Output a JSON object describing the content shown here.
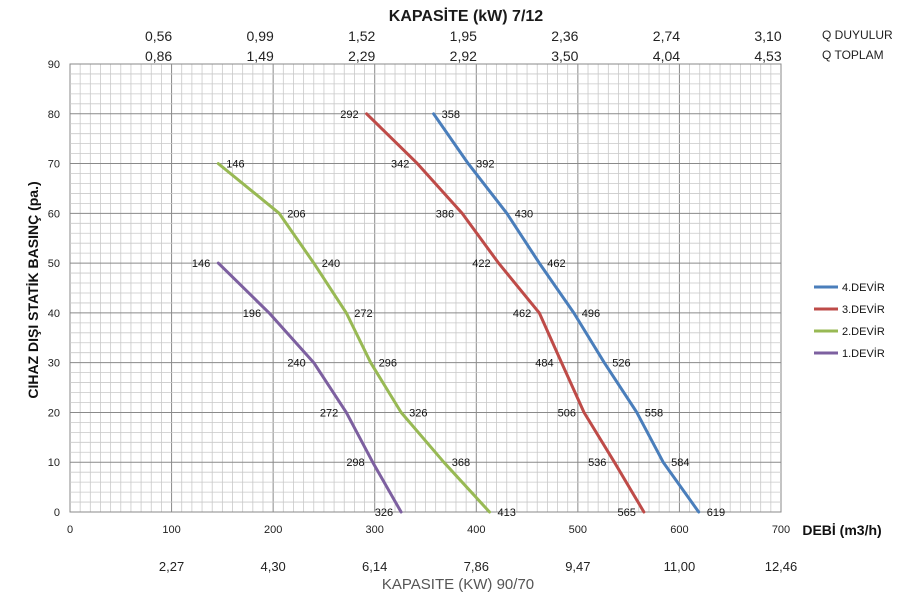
{
  "chart_data": {
    "type": "line",
    "title": "KAPASİTE (kW)  7/12",
    "xlabel": "DEBİ (m3/h)",
    "ylabel": "CIHAZ DIŞI STATİK BASINÇ (pa.)",
    "bottom_label": "KAPASITE (KW) 90/70",
    "xlim": [
      0,
      700
    ],
    "ylim": [
      0,
      90
    ],
    "x_ticks": [
      "0",
      "100",
      "200",
      "300",
      "400",
      "500",
      "600",
      "700"
    ],
    "y_ticks": [
      "0",
      "10",
      "20",
      "30",
      "40",
      "50",
      "60",
      "70",
      "80",
      "90"
    ],
    "grid": true,
    "legend_position": "right",
    "top_axis_rows": [
      {
        "name": "Q DUYULUR",
        "values": [
          "0,56",
          "0,99",
          "1,52",
          "1,95",
          "2,36",
          "2,74",
          "3,10"
        ]
      },
      {
        "name": "Q TOPLAM",
        "values": [
          "0,86",
          "1,49",
          "2,29",
          "2,92",
          "3,50",
          "4,04",
          "4,53"
        ]
      }
    ],
    "bottom_capacity_values": [
      "2,27",
      "4,30",
      "6,14",
      "7,86",
      "9,47",
      "11,00",
      "12,46"
    ],
    "series": [
      {
        "name": "4.DEVİR",
        "color": "#4a7ebb",
        "points": [
          [
            358,
            80
          ],
          [
            392,
            70
          ],
          [
            430,
            60
          ],
          [
            462,
            50
          ],
          [
            496,
            40
          ],
          [
            526,
            30
          ],
          [
            558,
            20
          ],
          [
            584,
            10
          ],
          [
            619,
            0
          ]
        ]
      },
      {
        "name": "3.DEVİR",
        "color": "#be4b48",
        "points": [
          [
            292,
            80
          ],
          [
            342,
            70
          ],
          [
            386,
            60
          ],
          [
            422,
            50
          ],
          [
            462,
            40
          ],
          [
            484,
            30
          ],
          [
            506,
            20
          ],
          [
            536,
            10
          ],
          [
            565,
            0
          ]
        ]
      },
      {
        "name": "2.DEVİR",
        "color": "#98b954",
        "points": [
          [
            146,
            70
          ],
          [
            206,
            60
          ],
          [
            240,
            50
          ],
          [
            272,
            40
          ],
          [
            296,
            30
          ],
          [
            326,
            20
          ],
          [
            368,
            10
          ],
          [
            413,
            0
          ]
        ]
      },
      {
        "name": "1.DEVİR",
        "color": "#7d60a0",
        "points": [
          [
            146,
            50
          ],
          [
            196,
            40
          ],
          [
            240,
            30
          ],
          [
            272,
            20
          ],
          [
            298,
            10
          ],
          [
            326,
            0
          ]
        ]
      }
    ]
  }
}
